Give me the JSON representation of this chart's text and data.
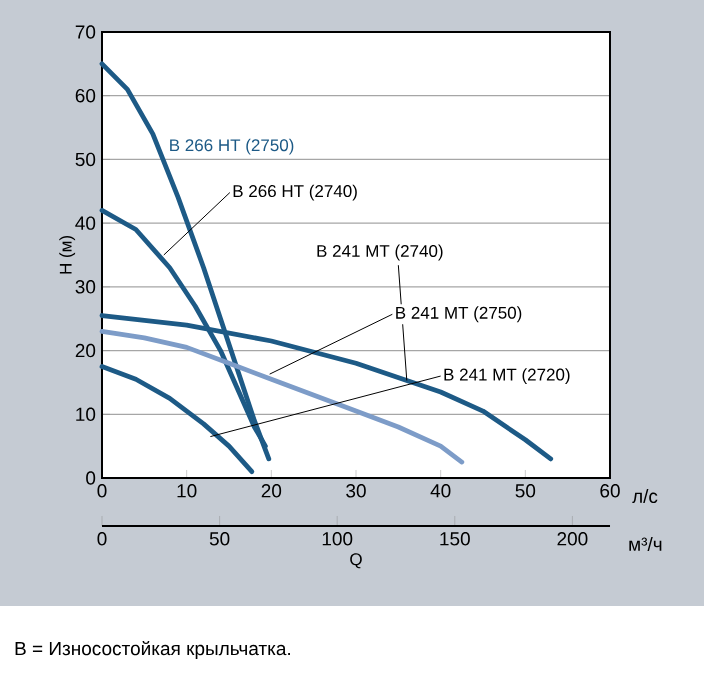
{
  "chart_data": {
    "type": "line",
    "xlabel": "Q",
    "ylabel": "H (м)",
    "xlim": [
      0,
      60
    ],
    "xticks": [
      0,
      10,
      20,
      30,
      40,
      50,
      60
    ],
    "x2lim": [
      0,
      216
    ],
    "x2ticks": [
      0,
      50,
      100,
      150,
      200
    ],
    "ylim": [
      0,
      70
    ],
    "yticks": [
      0,
      10,
      20,
      30,
      40,
      50,
      60,
      70
    ],
    "grid": "y",
    "series": [
      {
        "name": "B 266 HT (2750)",
        "color": "#1d5a86",
        "x": [
          0,
          3,
          6,
          9,
          12,
          14,
          16,
          18,
          19.7
        ],
        "values": [
          65,
          61,
          54,
          44,
          33,
          25,
          17,
          9,
          3
        ]
      },
      {
        "name": "B 266 HT (2740)",
        "color": "#1d5a86",
        "x": [
          0,
          4,
          8,
          11,
          14,
          16,
          18,
          19.3
        ],
        "values": [
          42,
          39,
          33,
          27,
          20,
          14,
          8,
          5
        ]
      },
      {
        "name": "B 241 MT (2740)",
        "color": "#1d5a86",
        "x": [
          0,
          10,
          20,
          30,
          40,
          45,
          50,
          53
        ],
        "values": [
          25.5,
          24,
          21.5,
          18,
          13.5,
          10.5,
          6,
          3
        ]
      },
      {
        "name": "B 241 MT (2750)",
        "color": "#7d9cc8",
        "x": [
          0,
          5,
          10,
          15,
          20,
          25,
          30,
          35,
          40,
          42.5
        ],
        "values": [
          23,
          22,
          20.5,
          18,
          15.5,
          13,
          10.5,
          8,
          5,
          2.5
        ]
      },
      {
        "name": "B 241 MT (2720)",
        "color": "#1d5a86",
        "x": [
          0,
          4,
          8,
          12,
          15,
          17.7
        ],
        "values": [
          17.5,
          15.5,
          12.5,
          8.5,
          5,
          1
        ]
      }
    ],
    "annotations": [
      "л/с",
      "м³/ч",
      "B = Износостойкая крыльчатка."
    ]
  }
}
